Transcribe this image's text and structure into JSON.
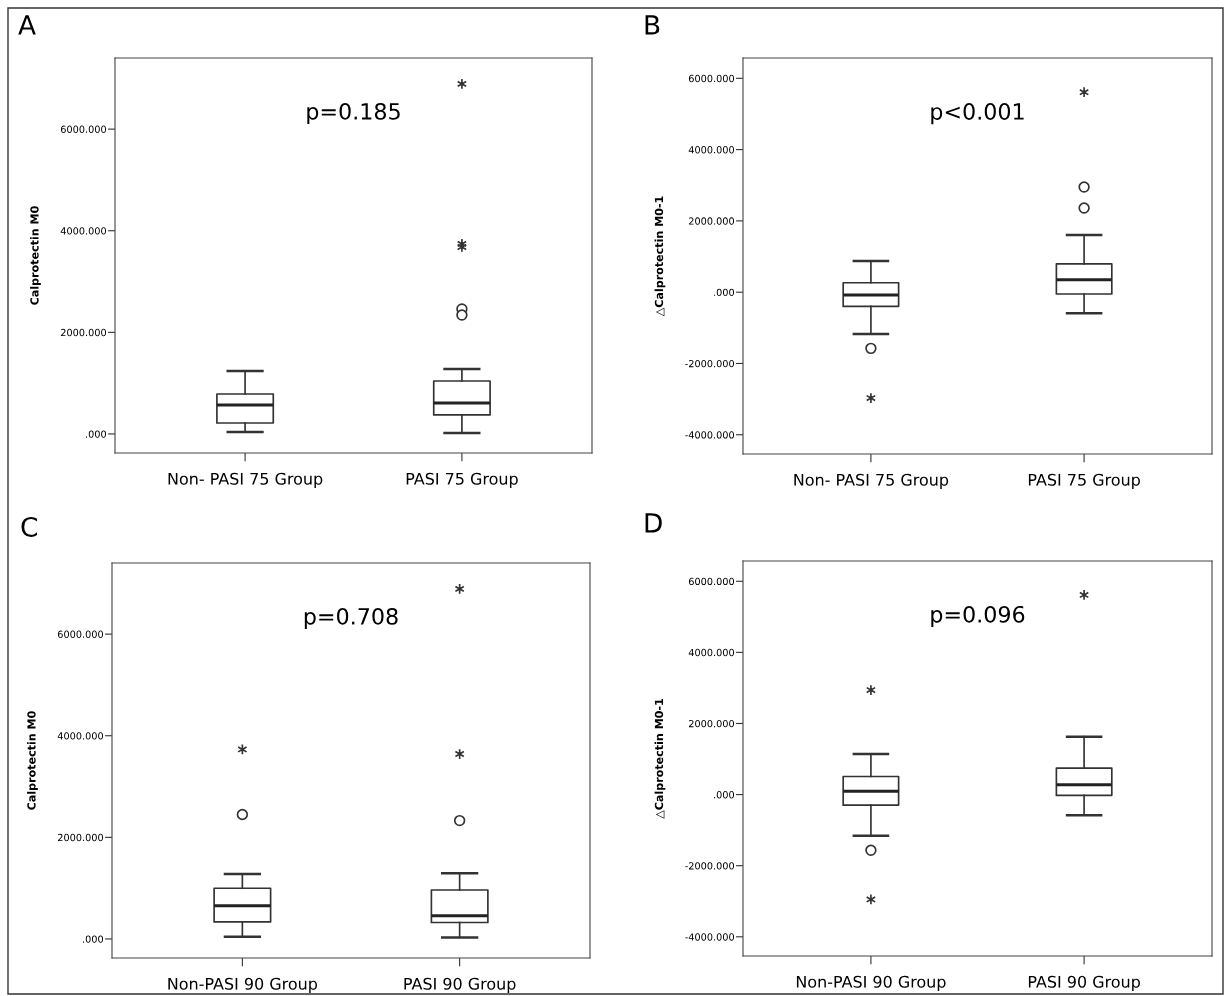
{
  "chart_data": [
    {
      "type": "box",
      "title": "A",
      "ylabel": "Calprotectin M0",
      "categories": [
        "Non- PASI 75 Group",
        "PASI 75 Group"
      ],
      "ylim": [
        -375,
        7400
      ],
      "yticks": [
        {
          "value": 0,
          "label": ".000"
        },
        {
          "value": 2000,
          "label": "2000.000"
        },
        {
          "value": 4000,
          "label": "4000.000"
        },
        {
          "value": 6000,
          "label": "6000.000"
        }
      ],
      "annotations": [
        "p=0.185"
      ],
      "grid": false,
      "legend": false,
      "boxes": [
        {
          "low": 40,
          "q1": 216,
          "median": 570,
          "q3": 787,
          "high": 1240
        },
        {
          "low": 20,
          "q1": 374,
          "median": 610,
          "q3": 1043,
          "high": 1280,
          "outliers": [
            6890,
            3740,
            3680,
            2460,
            2340
          ]
        }
      ]
    },
    {
      "type": "box",
      "title": "B",
      "ylabel": "△Calprotectin M0-1",
      "categories": [
        "Non- PASI 75 Group",
        "PASI 75 Group"
      ],
      "ylim": [
        -4540,
        6570
      ],
      "yticks": [
        {
          "value": -4000,
          "label": "-4000.000"
        },
        {
          "value": -2000,
          "label": "-2000.000"
        },
        {
          "value": 0,
          "label": ".000"
        },
        {
          "value": 2000,
          "label": "2000.000"
        },
        {
          "value": 4000,
          "label": "4000.000"
        },
        {
          "value": 6000,
          "label": "6000.000"
        }
      ],
      "annotations": [
        "p<0.001"
      ],
      "grid": false,
      "legend": false,
      "boxes": [
        {
          "low": -1170,
          "q1": -397,
          "median": -81,
          "q3": 264,
          "high": 875,
          "outliers": [
            -1576,
            -2970
          ]
        },
        {
          "low": -590,
          "q1": -50,
          "median": 350,
          "q3": 793,
          "high": 1607,
          "outliers": [
            5610,
            2950,
            2360
          ]
        }
      ]
    },
    {
      "type": "box",
      "title": "C",
      "ylabel": "Calprotectin M0",
      "categories": [
        "Non-PASI 90 Group",
        "PASI 90 Group"
      ],
      "ylim": [
        -375,
        7400
      ],
      "yticks": [
        {
          "value": 0,
          "label": ".000"
        },
        {
          "value": 2000,
          "label": "2000.000"
        },
        {
          "value": 4000,
          "label": "4000.000"
        },
        {
          "value": 6000,
          "label": "6000.000"
        }
      ],
      "annotations": [
        "p=0.708"
      ],
      "grid": false,
      "legend": false,
      "boxes": [
        {
          "low": 42,
          "q1": 337,
          "median": 654,
          "q3": 998,
          "high": 1279,
          "outliers": [
            2450,
            3730
          ]
        },
        {
          "low": 30,
          "q1": 323,
          "median": 457,
          "q3": 963,
          "high": 1293,
          "outliers": [
            6890,
            3640,
            2330
          ]
        }
      ]
    },
    {
      "type": "box",
      "title": "D",
      "ylabel": "△Calprotectin M0-1",
      "categories": [
        "Non-PASI 90 Group",
        "PASI 90 Group"
      ],
      "ylim": [
        -4540,
        6570
      ],
      "yticks": [
        {
          "value": -4000,
          "label": "-4000.000"
        },
        {
          "value": -2000,
          "label": "-2000.000"
        },
        {
          "value": 0,
          "label": ".000"
        },
        {
          "value": 2000,
          "label": "2000.000"
        },
        {
          "value": 4000,
          "label": "4000.000"
        },
        {
          "value": 6000,
          "label": "6000.000"
        }
      ],
      "annotations": [
        "p=0.096"
      ],
      "grid": false,
      "legend": false,
      "boxes": [
        {
          "low": -1160,
          "q1": -295,
          "median": 92,
          "q3": 509,
          "high": 1139,
          "outliers": [
            2940,
            -1567,
            -2950
          ]
        },
        {
          "low": -580,
          "q1": -20,
          "median": 275,
          "q3": 743,
          "high": 1628,
          "outliers": [
            5615
          ]
        }
      ]
    }
  ]
}
